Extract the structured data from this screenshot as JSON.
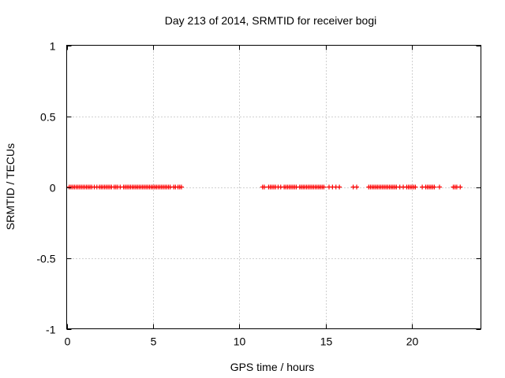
{
  "chart_data": {
    "type": "scatter",
    "title": "Day 213 of 2014, SRMTID for receiver bogi",
    "xlabel": "GPS time / hours",
    "ylabel": "SRMTID / TECUs",
    "xlim": [
      0,
      24
    ],
    "ylim": [
      -1,
      1
    ],
    "x_ticks": [
      0,
      5,
      10,
      15,
      20
    ],
    "x_tick_labels": [
      "0",
      "5",
      "10",
      "15",
      "20"
    ],
    "y_ticks": [
      1,
      0.5,
      0,
      -0.5,
      -1
    ],
    "y_tick_labels": [
      "1",
      "0.5",
      "0",
      "-0.5",
      "-1"
    ],
    "grid": true,
    "marker": "+",
    "series": [
      {
        "name": "SRMTID",
        "color": "#ff0000",
        "y_value": 0,
        "x": [
          0.15,
          0.25,
          0.35,
          0.45,
          0.55,
          0.65,
          0.75,
          0.85,
          0.95,
          1.05,
          1.15,
          1.25,
          1.35,
          1.45,
          1.6,
          1.75,
          1.9,
          2.0,
          2.1,
          2.2,
          2.3,
          2.4,
          2.5,
          2.6,
          2.75,
          2.85,
          2.95,
          3.1,
          3.3,
          3.4,
          3.5,
          3.6,
          3.7,
          3.8,
          3.9,
          4.0,
          4.1,
          4.2,
          4.3,
          4.4,
          4.5,
          4.6,
          4.7,
          4.8,
          4.9,
          5.0,
          5.1,
          5.2,
          5.3,
          5.4,
          5.5,
          5.6,
          5.7,
          5.8,
          5.9,
          6.0,
          6.2,
          6.3,
          6.45,
          6.55,
          6.65,
          11.35,
          11.45,
          11.7,
          11.8,
          11.9,
          12.0,
          12.1,
          12.25,
          12.4,
          12.6,
          12.7,
          12.8,
          12.9,
          13.0,
          13.1,
          13.2,
          13.3,
          13.5,
          13.6,
          13.7,
          13.8,
          13.9,
          14.0,
          14.1,
          14.2,
          14.3,
          14.4,
          14.5,
          14.6,
          14.7,
          14.8,
          14.9,
          15.2,
          15.4,
          15.6,
          15.8,
          16.6,
          16.8,
          17.5,
          17.6,
          17.7,
          17.8,
          17.9,
          18.0,
          18.1,
          18.2,
          18.3,
          18.4,
          18.5,
          18.6,
          18.7,
          18.8,
          18.9,
          19.0,
          19.1,
          19.3,
          19.5,
          19.7,
          19.8,
          19.9,
          20.0,
          20.1,
          20.2,
          20.6,
          20.8,
          20.9,
          21.0,
          21.1,
          21.2,
          21.3,
          21.6,
          22.4,
          22.5,
          22.6,
          22.8
        ]
      }
    ]
  }
}
